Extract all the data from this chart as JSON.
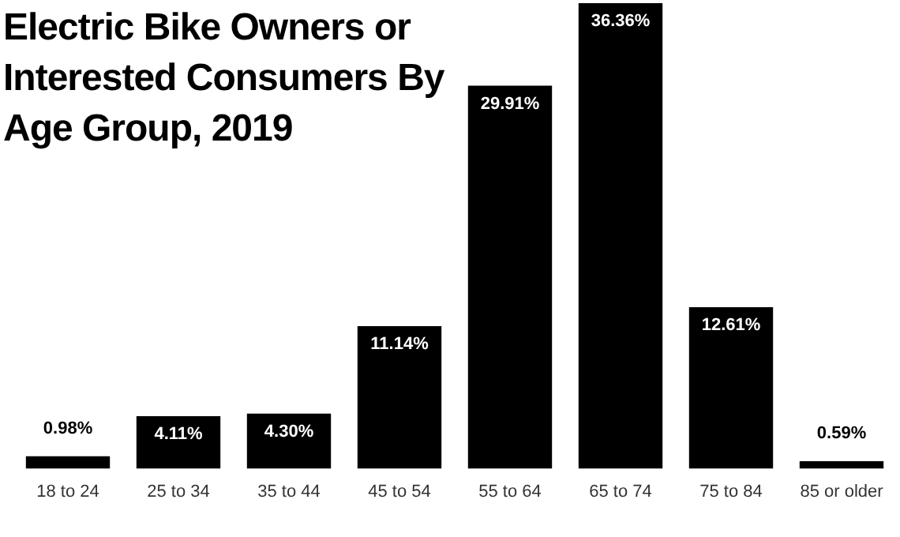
{
  "chart_data": {
    "type": "bar",
    "title": "Electric Bike Owners or Interested Consumers By Age Group, 2019",
    "categories": [
      "18 to 24",
      "25 to 34",
      "35 to 44",
      "45 to 54",
      "55 to 64",
      "65 to 74",
      "75 to 84",
      "85 or older"
    ],
    "values": [
      0.98,
      4.11,
      4.3,
      11.14,
      29.91,
      36.36,
      12.61,
      0.59
    ],
    "value_labels": [
      "0.98%",
      "4.11%",
      "4.30%",
      "11.14%",
      "29.91%",
      "36.36%",
      "12.61%",
      "0.59%"
    ],
    "color": "#000000",
    "grid": false,
    "legend": false,
    "tick_labels": "x"
  }
}
